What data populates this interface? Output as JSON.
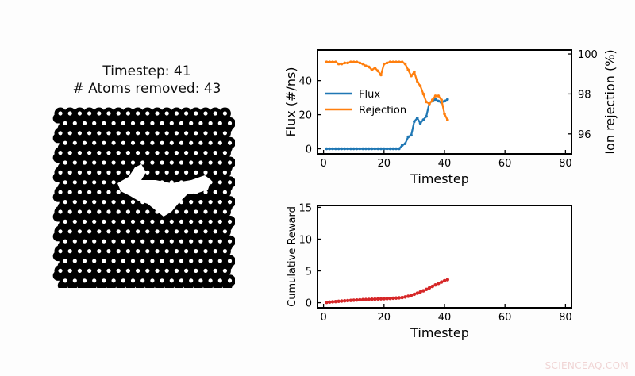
{
  "left_panel": {
    "timestep_label": "Timestep: 41",
    "atoms_removed_label": "# Atoms removed: 43",
    "lattice": {
      "rows": 18,
      "cols": 18,
      "hole_color": "#ffffff",
      "atom_color": "#000000"
    }
  },
  "watermark": "SCIENCEAQ.COM",
  "chart_data": [
    {
      "type": "line",
      "title": "",
      "xlabel": "Timestep",
      "ylabel": "Flux (#/ns)",
      "ylabel_right": "Ion rejection (%)",
      "xlim": [
        -2,
        82
      ],
      "ylim": [
        -3,
        58
      ],
      "ylim_right": [
        95,
        100.2
      ],
      "xticks": [
        0,
        20,
        40,
        60,
        80
      ],
      "yticks": [
        0,
        20,
        40
      ],
      "yticks_right": [
        96,
        98,
        100
      ],
      "grid": false,
      "legend_position": "center left",
      "x": [
        1,
        2,
        3,
        4,
        5,
        6,
        7,
        8,
        9,
        10,
        11,
        12,
        13,
        14,
        15,
        16,
        17,
        18,
        19,
        20,
        21,
        22,
        23,
        24,
        25,
        26,
        27,
        28,
        29,
        30,
        31,
        32,
        33,
        34,
        35,
        36,
        37,
        38,
        39,
        40,
        41
      ],
      "series": [
        {
          "name": "Flux",
          "axis": "left",
          "color": "#1f77b4",
          "values": [
            0,
            0,
            0,
            0,
            0,
            0,
            0,
            0,
            0,
            0,
            0,
            0,
            0,
            0,
            0,
            0,
            0,
            0,
            0,
            0,
            0,
            0,
            0,
            0,
            0,
            2,
            3,
            7,
            8,
            16,
            18,
            15,
            17,
            19,
            27,
            28,
            29,
            28,
            27,
            28,
            29
          ]
        },
        {
          "name": "Rejection",
          "axis": "right",
          "color": "#ff7f0e",
          "values": [
            99.6,
            99.6,
            99.6,
            99.6,
            99.5,
            99.5,
            99.55,
            99.55,
            99.6,
            99.6,
            99.6,
            99.55,
            99.5,
            99.4,
            99.35,
            99.2,
            99.3,
            99.15,
            98.95,
            99.5,
            99.55,
            99.6,
            99.6,
            99.6,
            99.6,
            99.6,
            99.5,
            99.2,
            98.9,
            99.1,
            98.6,
            98.4,
            98.0,
            97.6,
            97.5,
            97.7,
            97.9,
            97.9,
            97.7,
            97.0,
            96.7
          ]
        }
      ]
    },
    {
      "type": "line",
      "title": "",
      "xlabel": "Timestep",
      "ylabel": "Cumulative Reward",
      "xlim": [
        -2,
        82
      ],
      "ylim": [
        -0.8,
        15.3
      ],
      "xticks": [
        0,
        20,
        40,
        60,
        80
      ],
      "yticks": [
        0,
        5,
        10,
        15
      ],
      "grid": false,
      "x": [
        1,
        2,
        3,
        4,
        5,
        6,
        7,
        8,
        9,
        10,
        11,
        12,
        13,
        14,
        15,
        16,
        17,
        18,
        19,
        20,
        21,
        22,
        23,
        24,
        25,
        26,
        27,
        28,
        29,
        30,
        31,
        32,
        33,
        34,
        35,
        36,
        37,
        38,
        39,
        40,
        41
      ],
      "series": [
        {
          "name": "Cumulative Reward",
          "color": "#d62728",
          "values": [
            0.05,
            0.1,
            0.14,
            0.18,
            0.22,
            0.26,
            0.3,
            0.33,
            0.36,
            0.39,
            0.42,
            0.45,
            0.48,
            0.5,
            0.52,
            0.55,
            0.57,
            0.59,
            0.61,
            0.63,
            0.65,
            0.68,
            0.7,
            0.73,
            0.77,
            0.82,
            0.9,
            1.02,
            1.17,
            1.33,
            1.5,
            1.68,
            1.88,
            2.1,
            2.33,
            2.56,
            2.8,
            3.03,
            3.25,
            3.45,
            3.62
          ]
        }
      ]
    }
  ]
}
